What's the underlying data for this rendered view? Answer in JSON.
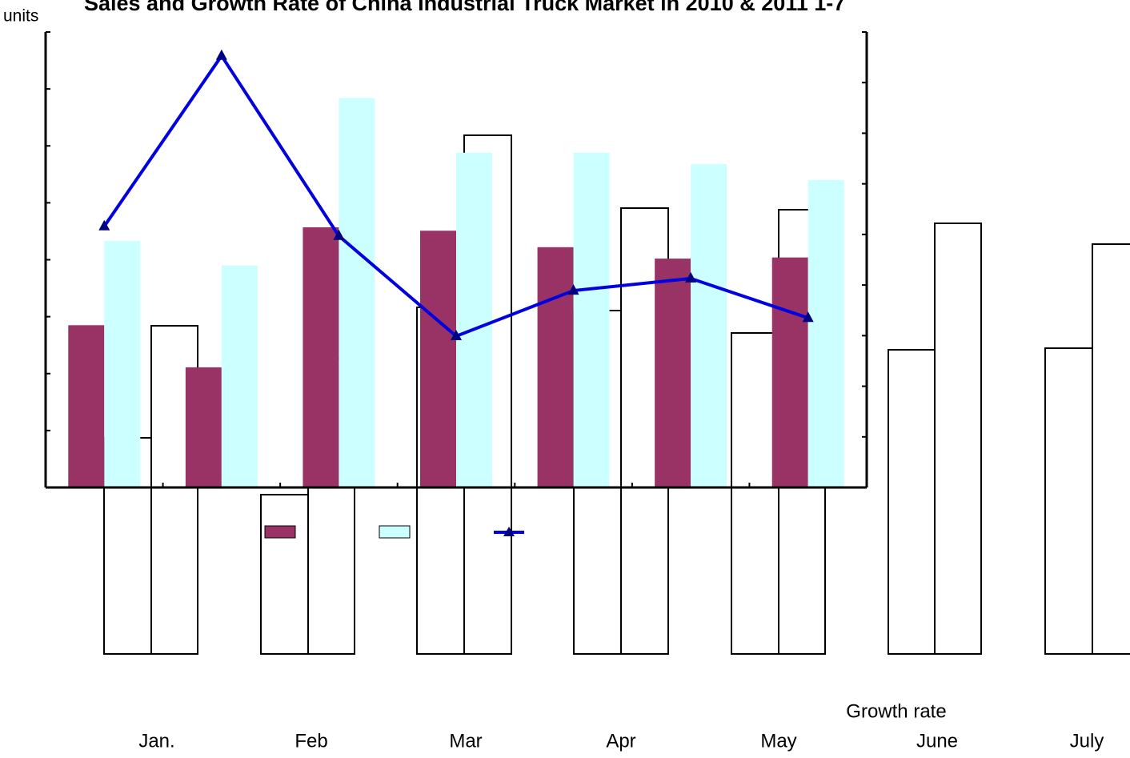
{
  "chart_data": {
    "type": "bar",
    "title": "Sales and Growth Rate of China Industrial Truck Market in 2010 & 2011 1-7",
    "y_label": "units",
    "y2_label": "Growth rate",
    "categories": [
      "Jan.",
      "Feb",
      "Mar",
      "Apr",
      "May",
      "June",
      "July"
    ],
    "ylim": [
      0,
      8
    ],
    "yticks": [
      0,
      1,
      2,
      3,
      4,
      5,
      6,
      7,
      8
    ],
    "y2lim": [
      0,
      9
    ],
    "y2ticks": [
      0,
      1,
      2,
      3,
      4,
      5,
      6,
      7,
      8,
      9
    ],
    "series": [
      {
        "color": "#993366",
        "values": [
          2.85,
          2.11,
          4.57,
          4.51,
          4.22,
          4.02,
          4.04
        ]
      },
      {
        "color": "#ccffff",
        "values": [
          4.33,
          3.9,
          6.84,
          5.88,
          5.88,
          5.68,
          5.4
        ]
      },
      {
        "type": "line",
        "axis": "y2",
        "color": "#0000e0",
        "marker_color": "#000080",
        "values": [
          5.16,
          8.53,
          4.97,
          2.99,
          3.89,
          4.13,
          3.35
        ]
      }
    ]
  }
}
